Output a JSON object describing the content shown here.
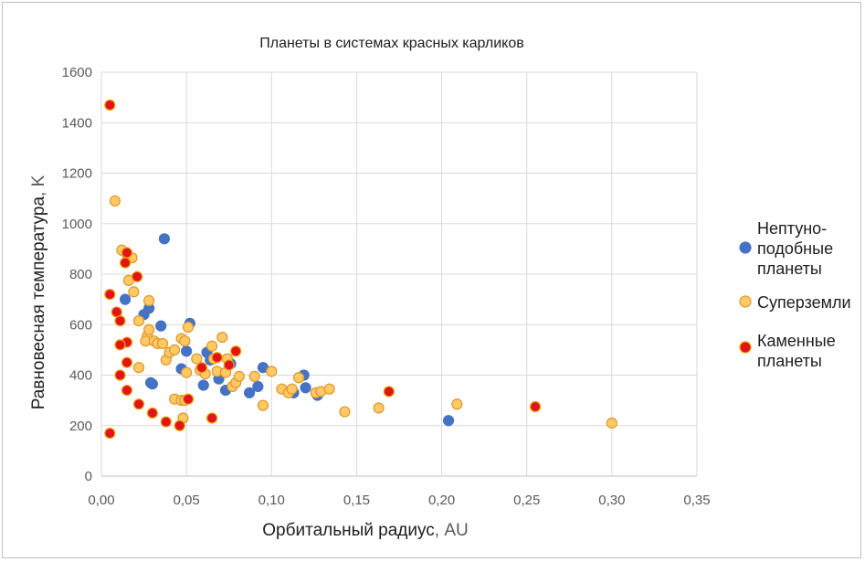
{
  "chart_data": {
    "type": "scatter",
    "title": "Планеты в системах красных карликов",
    "xlabel_main": "Орбитальный радиус",
    "xlabel_unit": ", AU",
    "ylabel_main": "Равновесная температура",
    "ylabel_unit": ", K",
    "xlim": [
      0,
      0.35
    ],
    "ylim": [
      0,
      1600
    ],
    "x_ticks": [
      "0,00",
      "0,05",
      "0,10",
      "0,15",
      "0,20",
      "0,25",
      "0,30",
      "0,35"
    ],
    "y_ticks": [
      "0",
      "200",
      "400",
      "600",
      "800",
      "1000",
      "1200",
      "1400",
      "1600"
    ],
    "grid": true,
    "legend_position": "right",
    "series": [
      {
        "name_lines": [
          "Нептуно-",
          "подобные",
          "планеты"
        ],
        "color": "#4472c4",
        "stroke": "#4472c4",
        "points": [
          [
            0.014,
            700
          ],
          [
            0.025,
            640
          ],
          [
            0.028,
            665
          ],
          [
            0.035,
            595
          ],
          [
            0.037,
            940
          ],
          [
            0.029,
            370
          ],
          [
            0.03,
            365
          ],
          [
            0.047,
            425
          ],
          [
            0.05,
            495
          ],
          [
            0.052,
            605
          ],
          [
            0.06,
            360
          ],
          [
            0.062,
            490
          ],
          [
            0.064,
            460
          ],
          [
            0.069,
            385
          ],
          [
            0.073,
            340
          ],
          [
            0.076,
            445
          ],
          [
            0.087,
            330
          ],
          [
            0.092,
            355
          ],
          [
            0.095,
            430
          ],
          [
            0.113,
            330
          ],
          [
            0.119,
            400
          ],
          [
            0.12,
            350
          ],
          [
            0.127,
            320
          ],
          [
            0.204,
            220
          ]
        ]
      },
      {
        "name_lines": [
          "Суперземли"
        ],
        "color": "#ffc966",
        "stroke": "#e0962a",
        "points": [
          [
            0.008,
            1090
          ],
          [
            0.012,
            895
          ],
          [
            0.015,
            880
          ],
          [
            0.018,
            865
          ],
          [
            0.016,
            775
          ],
          [
            0.019,
            730
          ],
          [
            0.028,
            695
          ],
          [
            0.022,
            615
          ],
          [
            0.027,
            555
          ],
          [
            0.028,
            580
          ],
          [
            0.026,
            535
          ],
          [
            0.031,
            535
          ],
          [
            0.033,
            525
          ],
          [
            0.036,
            525
          ],
          [
            0.022,
            430
          ],
          [
            0.038,
            460
          ],
          [
            0.04,
            490
          ],
          [
            0.043,
            500
          ],
          [
            0.047,
            545
          ],
          [
            0.049,
            535
          ],
          [
            0.051,
            590
          ],
          [
            0.05,
            410
          ],
          [
            0.056,
            465
          ],
          [
            0.058,
            420
          ],
          [
            0.061,
            405
          ],
          [
            0.065,
            515
          ],
          [
            0.066,
            465
          ],
          [
            0.068,
            415
          ],
          [
            0.071,
            550
          ],
          [
            0.073,
            410
          ],
          [
            0.074,
            465
          ],
          [
            0.077,
            355
          ],
          [
            0.079,
            370
          ],
          [
            0.081,
            395
          ],
          [
            0.043,
            305
          ],
          [
            0.047,
            300
          ],
          [
            0.049,
            300
          ],
          [
            0.048,
            230
          ],
          [
            0.09,
            395
          ],
          [
            0.095,
            280
          ],
          [
            0.1,
            415
          ],
          [
            0.106,
            345
          ],
          [
            0.11,
            330
          ],
          [
            0.112,
            345
          ],
          [
            0.116,
            390
          ],
          [
            0.126,
            330
          ],
          [
            0.129,
            335
          ],
          [
            0.134,
            345
          ],
          [
            0.143,
            255
          ],
          [
            0.163,
            270
          ],
          [
            0.209,
            285
          ],
          [
            0.3,
            210
          ]
        ]
      },
      {
        "name_lines": [
          "Каменные",
          "планеты"
        ],
        "color": "#e0141a",
        "stroke": "#f0a000",
        "points": [
          [
            0.005,
            1470
          ],
          [
            0.015,
            885
          ],
          [
            0.014,
            845
          ],
          [
            0.021,
            790
          ],
          [
            0.005,
            720
          ],
          [
            0.009,
            650
          ],
          [
            0.011,
            615
          ],
          [
            0.015,
            530
          ],
          [
            0.011,
            520
          ],
          [
            0.015,
            450
          ],
          [
            0.011,
            400
          ],
          [
            0.015,
            340
          ],
          [
            0.022,
            285
          ],
          [
            0.005,
            170
          ],
          [
            0.03,
            250
          ],
          [
            0.038,
            215
          ],
          [
            0.046,
            200
          ],
          [
            0.051,
            305
          ],
          [
            0.059,
            430
          ],
          [
            0.065,
            230
          ],
          [
            0.068,
            470
          ],
          [
            0.075,
            440
          ],
          [
            0.079,
            495
          ],
          [
            0.169,
            335
          ],
          [
            0.255,
            275
          ]
        ]
      }
    ]
  }
}
